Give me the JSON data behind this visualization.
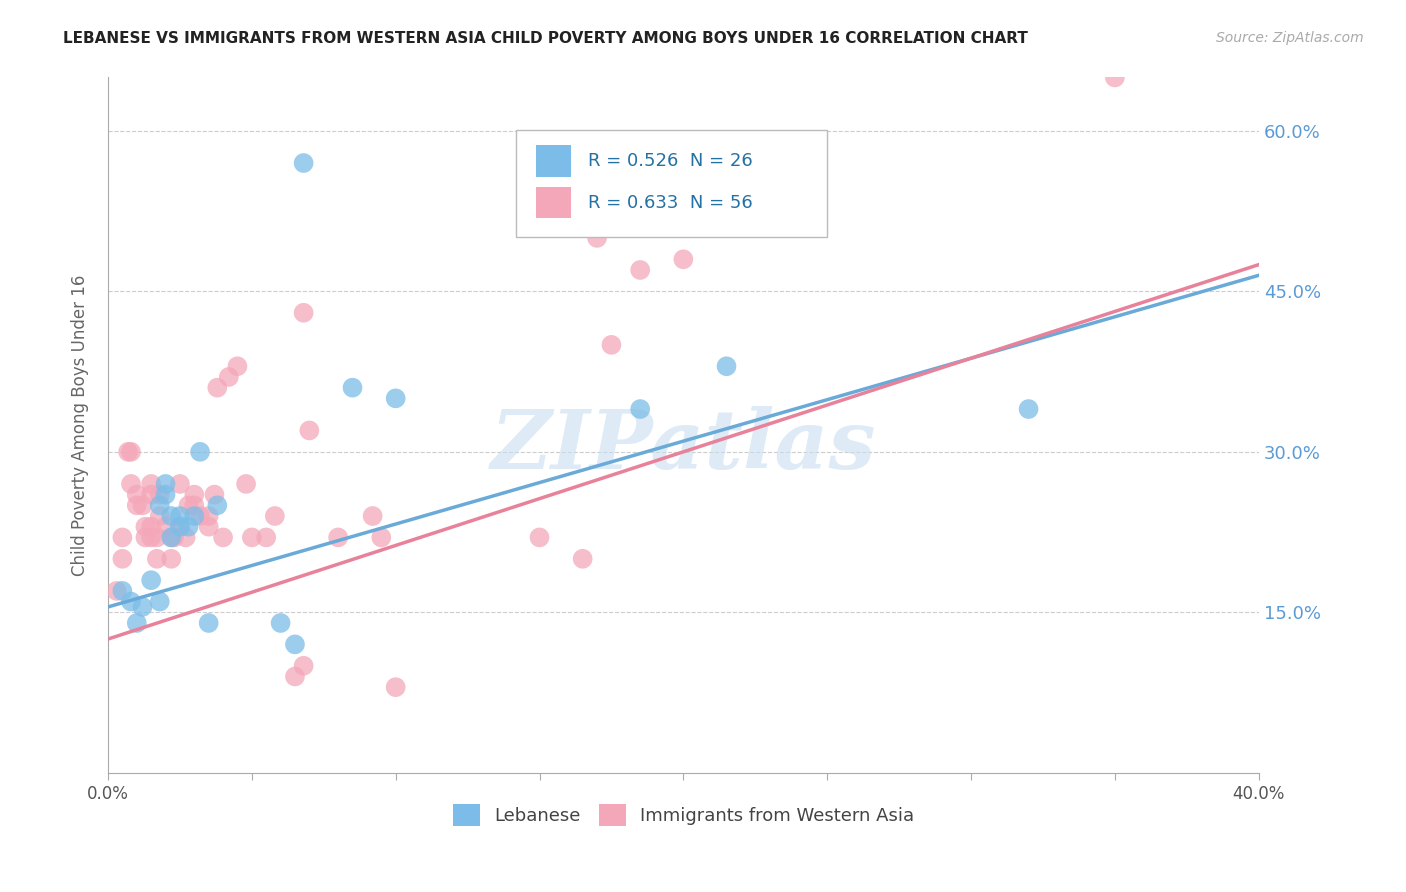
{
  "title": "LEBANESE VS IMMIGRANTS FROM WESTERN ASIA CHILD POVERTY AMONG BOYS UNDER 16 CORRELATION CHART",
  "source": "Source: ZipAtlas.com",
  "ylabel": "Child Poverty Among Boys Under 16",
  "xlim": [
    0.0,
    0.4
  ],
  "ylim": [
    0.0,
    0.65
  ],
  "xticks": [
    0.0,
    0.05,
    0.1,
    0.15,
    0.2,
    0.25,
    0.3,
    0.35,
    0.4
  ],
  "xtick_labels": [
    "0.0%",
    "",
    "",
    "",
    "",
    "",
    "",
    "",
    "40.0%"
  ],
  "yticks_left": [
    0.15,
    0.3,
    0.45,
    0.6
  ],
  "yticks_labels_left": [
    "",
    "",
    "",
    ""
  ],
  "yticks_right": [
    0.15,
    0.3,
    0.45,
    0.6
  ],
  "yticks_labels_right": [
    "15.0%",
    "30.0%",
    "45.0%",
    "60.0%"
  ],
  "legend_labels": [
    "Lebanese",
    "Immigrants from Western Asia"
  ],
  "r_lebanese": 0.526,
  "n_lebanese": 26,
  "r_western": 0.633,
  "n_western": 56,
  "watermark": "ZIPatlas",
  "blue_color": "#7bbde8",
  "pink_color": "#f4a7b9",
  "blue_line_color": "#6aaad8",
  "pink_line_color": "#e8829a",
  "lebanese_points": [
    [
      0.005,
      0.17
    ],
    [
      0.008,
      0.16
    ],
    [
      0.01,
      0.14
    ],
    [
      0.012,
      0.155
    ],
    [
      0.015,
      0.18
    ],
    [
      0.018,
      0.16
    ],
    [
      0.018,
      0.25
    ],
    [
      0.02,
      0.27
    ],
    [
      0.02,
      0.26
    ],
    [
      0.022,
      0.24
    ],
    [
      0.022,
      0.22
    ],
    [
      0.025,
      0.24
    ],
    [
      0.025,
      0.23
    ],
    [
      0.028,
      0.23
    ],
    [
      0.03,
      0.24
    ],
    [
      0.032,
      0.3
    ],
    [
      0.035,
      0.14
    ],
    [
      0.038,
      0.25
    ],
    [
      0.06,
      0.14
    ],
    [
      0.065,
      0.12
    ],
    [
      0.068,
      0.57
    ],
    [
      0.085,
      0.36
    ],
    [
      0.1,
      0.35
    ],
    [
      0.185,
      0.34
    ],
    [
      0.215,
      0.38
    ],
    [
      0.32,
      0.34
    ]
  ],
  "western_points": [
    [
      0.003,
      0.17
    ],
    [
      0.005,
      0.22
    ],
    [
      0.005,
      0.2
    ],
    [
      0.007,
      0.3
    ],
    [
      0.008,
      0.3
    ],
    [
      0.008,
      0.27
    ],
    [
      0.01,
      0.26
    ],
    [
      0.01,
      0.25
    ],
    [
      0.012,
      0.25
    ],
    [
      0.013,
      0.23
    ],
    [
      0.013,
      0.22
    ],
    [
      0.015,
      0.27
    ],
    [
      0.015,
      0.26
    ],
    [
      0.015,
      0.23
    ],
    [
      0.015,
      0.22
    ],
    [
      0.017,
      0.22
    ],
    [
      0.017,
      0.2
    ],
    [
      0.018,
      0.26
    ],
    [
      0.018,
      0.24
    ],
    [
      0.02,
      0.23
    ],
    [
      0.022,
      0.22
    ],
    [
      0.022,
      0.2
    ],
    [
      0.023,
      0.22
    ],
    [
      0.025,
      0.23
    ],
    [
      0.025,
      0.27
    ],
    [
      0.027,
      0.22
    ],
    [
      0.028,
      0.25
    ],
    [
      0.03,
      0.25
    ],
    [
      0.03,
      0.26
    ],
    [
      0.032,
      0.24
    ],
    [
      0.035,
      0.23
    ],
    [
      0.035,
      0.24
    ],
    [
      0.037,
      0.26
    ],
    [
      0.038,
      0.36
    ],
    [
      0.04,
      0.22
    ],
    [
      0.042,
      0.37
    ],
    [
      0.045,
      0.38
    ],
    [
      0.048,
      0.27
    ],
    [
      0.05,
      0.22
    ],
    [
      0.055,
      0.22
    ],
    [
      0.058,
      0.24
    ],
    [
      0.065,
      0.09
    ],
    [
      0.068,
      0.1
    ],
    [
      0.068,
      0.43
    ],
    [
      0.07,
      0.32
    ],
    [
      0.08,
      0.22
    ],
    [
      0.092,
      0.24
    ],
    [
      0.095,
      0.22
    ],
    [
      0.1,
      0.08
    ],
    [
      0.15,
      0.22
    ],
    [
      0.165,
      0.2
    ],
    [
      0.17,
      0.5
    ],
    [
      0.175,
      0.4
    ],
    [
      0.185,
      0.47
    ],
    [
      0.2,
      0.48
    ],
    [
      0.35,
      0.65
    ]
  ]
}
